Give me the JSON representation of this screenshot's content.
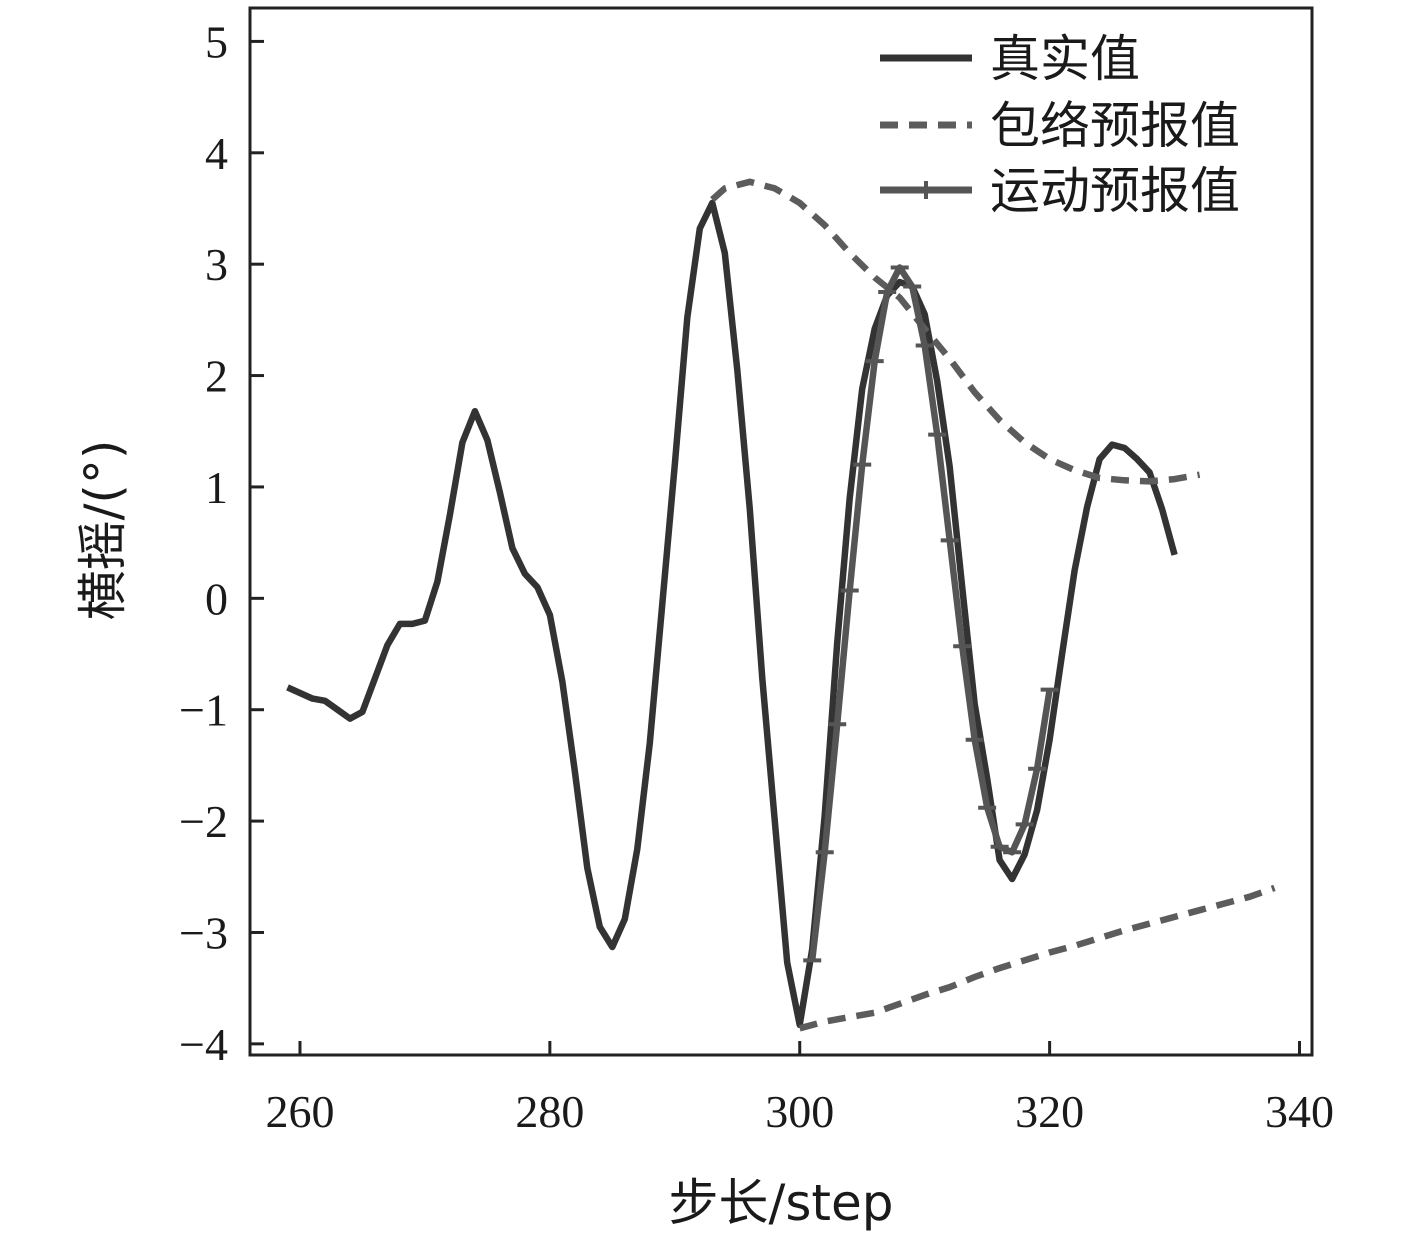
{
  "chart_data": {
    "type": "line",
    "title": "",
    "xlabel": "步长/step",
    "ylabel": "横摇/(°)",
    "xlim": [
      256,
      341
    ],
    "ylim": [
      -4.1,
      5.3
    ],
    "xticks": [
      260,
      280,
      300,
      320,
      340
    ],
    "yticks": [
      5,
      4,
      3,
      2,
      1,
      0,
      -1,
      -2,
      -3,
      -4
    ],
    "xtick_labels": [
      "260",
      "280",
      "300",
      "320",
      "340"
    ],
    "ytick_labels": [
      "5",
      "4",
      "3",
      "2",
      "1",
      "0",
      "−1",
      "−2",
      "−3",
      "−4"
    ],
    "grid": false,
    "legend_position": "top-right",
    "colors": {
      "actual": "#333333",
      "envelope": "#5c5c5c",
      "motion": "#555555",
      "axis": "#222222"
    },
    "series": [
      {
        "name": "真实值",
        "style": "solid",
        "x": [
          259,
          261,
          262,
          263,
          264,
          265,
          266,
          267,
          268,
          269,
          270,
          271,
          272,
          273,
          274,
          275,
          276,
          277,
          278,
          279,
          280,
          281,
          282,
          283,
          284,
          285,
          286,
          287,
          288,
          289,
          290,
          291,
          292,
          293,
          294,
          295,
          296,
          297,
          298,
          299,
          300,
          301,
          302,
          303,
          304,
          305,
          306,
          307,
          308,
          309,
          310,
          311,
          312,
          313,
          314,
          315,
          316,
          317,
          318,
          319,
          320,
          321,
          322,
          323,
          324,
          325,
          326,
          327,
          328,
          329,
          330
        ],
        "y": [
          -0.8,
          -0.9,
          -0.92,
          -1.0,
          -1.08,
          -1.02,
          -0.72,
          -0.42,
          -0.23,
          -0.23,
          -0.2,
          0.15,
          0.75,
          1.4,
          1.68,
          1.42,
          0.95,
          0.45,
          0.22,
          0.1,
          -0.15,
          -0.75,
          -1.55,
          -2.42,
          -2.95,
          -3.13,
          -2.88,
          -2.25,
          -1.3,
          -0.05,
          1.2,
          2.52,
          3.32,
          3.55,
          3.1,
          2.05,
          0.8,
          -0.72,
          -2.0,
          -3.27,
          -3.83,
          -3.15,
          -1.95,
          -0.4,
          0.9,
          1.88,
          2.42,
          2.72,
          2.84,
          2.8,
          2.55,
          1.95,
          1.18,
          0.1,
          -0.95,
          -1.62,
          -2.35,
          -2.52,
          -2.3,
          -1.9,
          -1.27,
          -0.5,
          0.25,
          0.82,
          1.25,
          1.38,
          1.35,
          1.25,
          1.13,
          0.8,
          0.39
        ]
      },
      {
        "name": "包络预报值",
        "style": "dashed",
        "x": [
          293,
          294,
          296,
          298,
          300,
          302,
          304,
          306,
          308,
          310,
          312,
          314,
          316,
          318,
          320,
          322,
          324,
          326,
          328,
          330,
          332
        ],
        "y": [
          3.58,
          3.68,
          3.74,
          3.68,
          3.55,
          3.35,
          3.1,
          2.88,
          2.7,
          2.42,
          2.15,
          1.85,
          1.6,
          1.4,
          1.25,
          1.15,
          1.08,
          1.06,
          1.05,
          1.07,
          1.11
        ]
      },
      {
        "name": "",
        "style": "dashed",
        "x": [
          300,
          302,
          304,
          306,
          308,
          310,
          312,
          314,
          316,
          318,
          320,
          322,
          324,
          326,
          328,
          330,
          332,
          334,
          336,
          338
        ],
        "y": [
          -3.86,
          -3.8,
          -3.76,
          -3.72,
          -3.64,
          -3.56,
          -3.49,
          -3.4,
          -3.32,
          -3.25,
          -3.18,
          -3.12,
          -3.05,
          -2.98,
          -2.92,
          -2.86,
          -2.8,
          -2.74,
          -2.68,
          -2.6
        ]
      },
      {
        "name": "运动预报值",
        "style": "solid-marked",
        "x": [
          301,
          302,
          303,
          304,
          305,
          306,
          307,
          308,
          309,
          310,
          311,
          312,
          313,
          314,
          315,
          316,
          317,
          318,
          319,
          320
        ],
        "y": [
          -3.25,
          -2.28,
          -1.13,
          0.07,
          1.2,
          2.13,
          2.75,
          2.97,
          2.8,
          2.27,
          1.47,
          0.52,
          -0.43,
          -1.27,
          -1.88,
          -2.23,
          -2.28,
          -2.03,
          -1.53,
          -0.82
        ]
      }
    ]
  }
}
